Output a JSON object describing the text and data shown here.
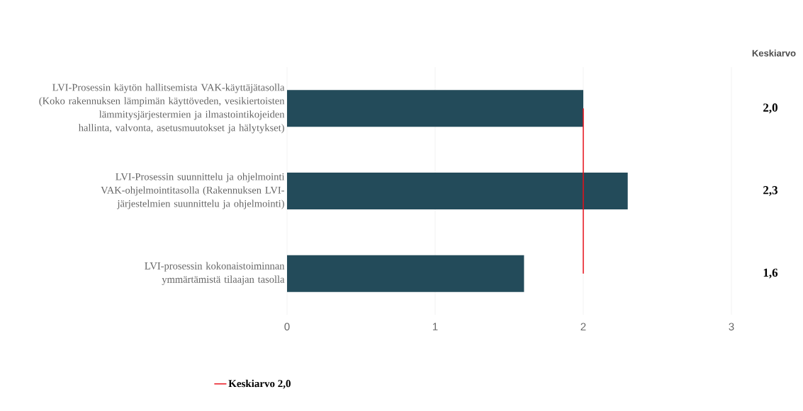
{
  "chart_data": {
    "type": "bar",
    "orientation": "horizontal",
    "categories": [
      "LVI-Prosessin käytön hallitsemista VAK-käyttäjätasolla (Koko rakennuksen lämpimän käyttöveden, vesikiertoisten lämmitysjärjestermien ja ilmastointikojeiden hallinta, valvonta, asetusmuutokset ja hälytykset)",
      "LVI-Prosessin suunnittelu ja ohjelmointi VAK-ohjelmointitasolla (Rakennuksen LVI-järjestelmien suunnittelu ja ohjelmointi)",
      "LVI-prosessin kokonaistoiminnan ymmärtämistä tilaajan tasolla"
    ],
    "values": [
      2.0,
      2.3,
      1.6
    ],
    "color": "#234b5a",
    "value_labels": [
      "2,0",
      "2,3",
      "1,6"
    ],
    "annotations": [
      "Keskiarvo"
    ],
    "ref_lines": [
      {
        "axis": "x",
        "value": 2.0,
        "label": "Keskiarvo 2,0",
        "color": "#e8101a"
      }
    ],
    "xlim": [
      0,
      3
    ],
    "xticks": [
      0,
      1,
      2,
      3
    ],
    "grid": "x",
    "legend": "bottom"
  }
}
